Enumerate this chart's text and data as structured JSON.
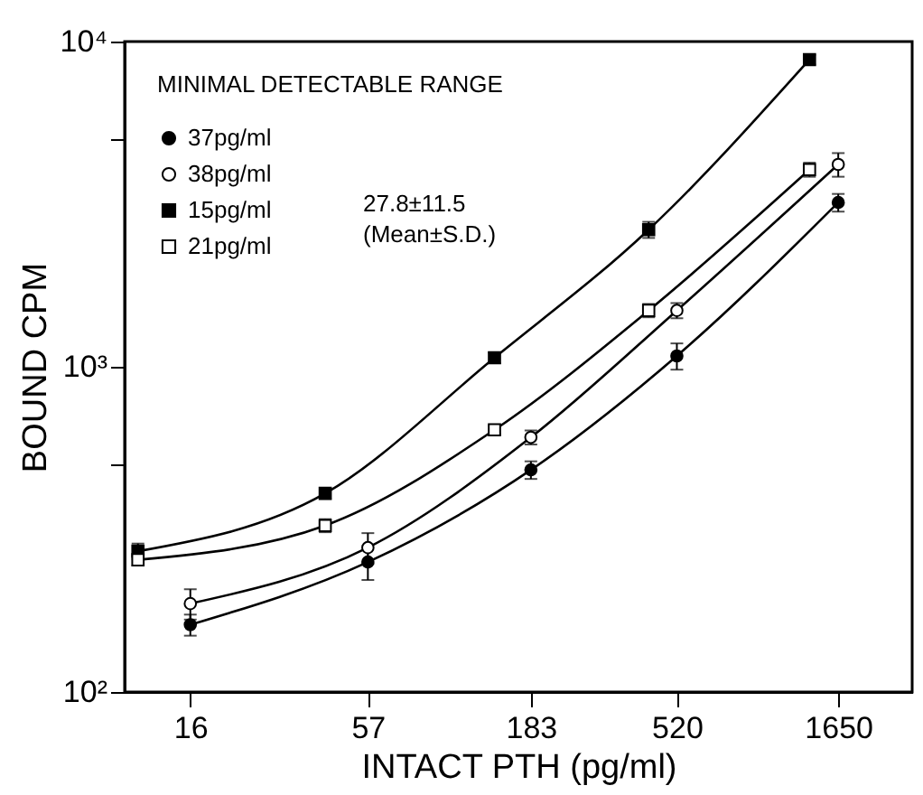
{
  "chart_data": {
    "type": "line",
    "xlabel": "INTACT PTH (pg/ml)",
    "ylabel": "BOUND CPM",
    "legend_title": "MINIMAL DETECTABLE RANGE",
    "annotations": [
      "27.8±11.5",
      "(Mean±S.D.)"
    ],
    "log": "xy",
    "xlim": [
      10,
      2800
    ],
    "xticks": [
      16,
      57,
      183,
      520,
      1650
    ],
    "ylim": [
      100,
      10000
    ],
    "yticks": [
      {
        "value": 100,
        "label": "10²"
      },
      {
        "value": 500,
        "label": null
      },
      {
        "value": 1000,
        "label": "10³"
      },
      {
        "value": 5000,
        "label": null
      },
      {
        "value": 10000,
        "label": "10⁴"
      }
    ],
    "grid": false,
    "legend": "top left",
    "series": [
      {
        "name": "37pg/ml",
        "color": "#000000",
        "marker": "circle",
        "x": [
          16,
          57,
          183,
          520,
          1650
        ],
        "values": [
          161,
          251,
          482,
          1080,
          3200
        ],
        "errors": [
          12,
          30,
          30,
          100,
          200
        ]
      },
      {
        "name": "38pg/ml",
        "color": "#ffffff",
        "marker": "circle",
        "x": [
          16,
          57,
          183,
          520,
          1650
        ],
        "values": [
          187,
          278,
          607,
          1490,
          4190
        ],
        "errors": [
          20,
          30,
          30,
          80,
          350
        ]
      },
      {
        "name": "15pg/ml",
        "color": "#000000",
        "marker": "square",
        "x": [
          11,
          42,
          141,
          425,
          1343
        ],
        "values": [
          271,
          408,
          1066,
          2640,
          8800
        ],
        "errors": [
          15,
          15,
          40,
          150,
          300
        ]
      },
      {
        "name": "21pg/ml",
        "color": "#ffffff",
        "marker": "square",
        "x": [
          11,
          42,
          141,
          425,
          1343
        ],
        "values": [
          255,
          325,
          640,
          1490,
          4040
        ],
        "errors": [
          10,
          15,
          20,
          70,
          200
        ]
      }
    ]
  }
}
